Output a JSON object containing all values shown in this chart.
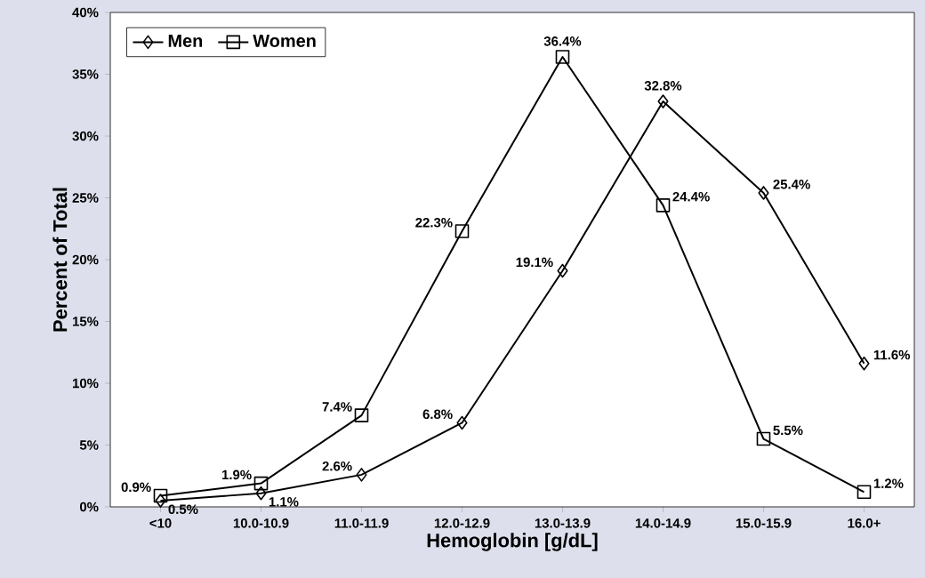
{
  "chart_data": {
    "type": "line",
    "xlabel": "Hemoglobin [g/dL]",
    "ylabel": "Percent of Total",
    "categories": [
      "<10",
      "10.0-10.9",
      "11.0-11.9",
      "12.0-12.9",
      "13.0-13.9",
      "14.0-14.9",
      "15.0-15.9",
      "16.0+"
    ],
    "series": [
      {
        "name": "Men",
        "color": "#000000",
        "marker": "diamond",
        "values": [
          0.5,
          1.1,
          2.6,
          6.8,
          19.1,
          32.8,
          25.4,
          11.6
        ],
        "value_labels": [
          "0.5%",
          "1.1%",
          "2.6%",
          "6.8%",
          "19.1%",
          "32.8%",
          "25.4%",
          "11.6%"
        ]
      },
      {
        "name": "Women",
        "color": "#000000",
        "marker": "square",
        "values": [
          0.9,
          1.9,
          7.4,
          22.3,
          36.4,
          24.4,
          5.5,
          1.2
        ],
        "value_labels": [
          "0.9%",
          "1.9%",
          "7.4%",
          "22.3%",
          "36.4%",
          "24.4%",
          "5.5%",
          "1.2%"
        ]
      }
    ],
    "ylim": [
      0,
      40
    ],
    "yticks": [
      {
        "value": 0,
        "label": "0%"
      },
      {
        "value": 5,
        "label": "5%"
      },
      {
        "value": 10,
        "label": "10%"
      },
      {
        "value": 15,
        "label": "15%"
      },
      {
        "value": 20,
        "label": "20%"
      },
      {
        "value": 25,
        "label": "25%"
      },
      {
        "value": 30,
        "label": "30%"
      },
      {
        "value": 35,
        "label": "35%"
      },
      {
        "value": 40,
        "label": "40%"
      }
    ],
    "grid": false,
    "legend": "top left",
    "line_style": "solid"
  }
}
